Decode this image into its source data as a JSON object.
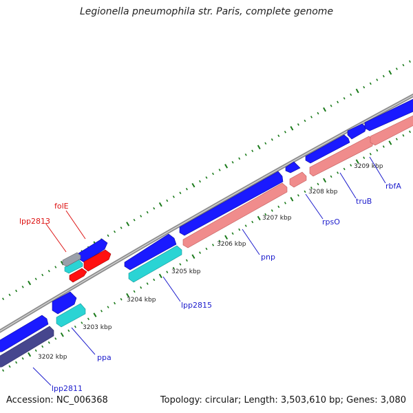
{
  "title": "Legionella pneumophila str. Paris, complete genome",
  "footer": {
    "accession": "Accession: NC_006368",
    "summary": "Topology: circular; Length: 3,503,610 bp; Genes: 3,080"
  },
  "colors": {
    "backbone": "#8e8e8e",
    "tick": "#1a7a1a",
    "forward_cds": "#1a1aff",
    "reverse_cds": "#f08c8c",
    "reverse_cds_cyan": "#2ad4d4",
    "reverse_cds_navy": "#46468e",
    "red_gene": "#ff1111",
    "blue_label": "#1a1acc",
    "red_label": "#dd1111"
  },
  "scale_labels": [
    "3202 kbp",
    "3203 kbp",
    "3204 kbp",
    "3205 kbp",
    "3206 kbp",
    "3207 kbp",
    "3208 kbp",
    "3209 kbp"
  ],
  "gene_labels": {
    "lpp2811": "lpp2811",
    "ppa": "ppa",
    "lpp2815": "lpp2815",
    "pnp": "pnp",
    "rpsO": "rpsO",
    "truB": "truB",
    "rbfA": "rbfA",
    "folE": "folE",
    "lpp2813": "lpp2813"
  }
}
